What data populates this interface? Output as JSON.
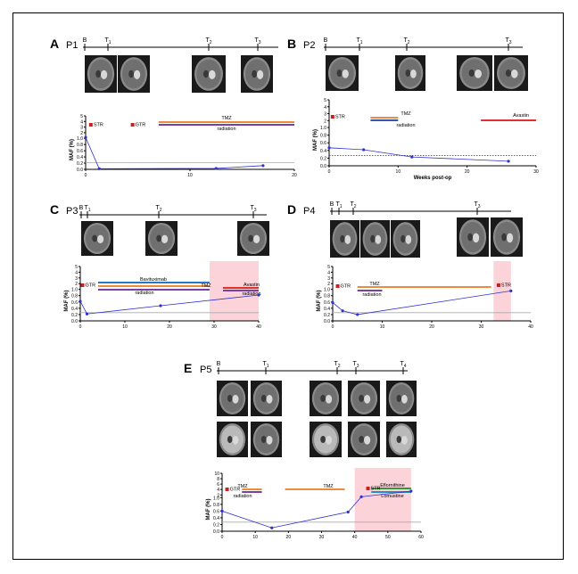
{
  "panels": [
    {
      "letter": "A",
      "patient": "P1",
      "timeline": [
        "B",
        "T1",
        "T2",
        "T3"
      ],
      "chart_data": {
        "type": "line",
        "ylabel": "MAF (%)",
        "xlabel": "",
        "yticks": [
          "0.0",
          "0.2",
          "0.4",
          "0.6",
          "0.8",
          "1.0",
          "2",
          "3",
          "4",
          "5"
        ],
        "xticks": [
          "0",
          "10",
          "20"
        ],
        "xlim": [
          0,
          20
        ],
        "series": [
          {
            "x": [
              0,
              1.3,
              12.5,
              17
            ],
            "y": [
              1.15,
              0.02,
              0.03,
              0.12
            ]
          }
        ],
        "threshold": 0.22,
        "markers": [
          {
            "label": "STR",
            "x": 0.5
          },
          {
            "label": "GTR",
            "x": 4.5
          }
        ],
        "bars": [
          {
            "label": "TMZ",
            "from": 7,
            "to": 20
          },
          {
            "label": "radiation",
            "from": 7,
            "to": 20
          }
        ]
      }
    },
    {
      "letter": "B",
      "patient": "P2",
      "timeline": [
        "B",
        "T1",
        "T2",
        "T3"
      ],
      "chart_data": {
        "type": "line",
        "ylabel": "MAF (%)",
        "xlabel": "Weeks post-op",
        "yticks": [
          "0.0",
          "0.2",
          "0.4",
          "0.6",
          "0.8",
          "1.0",
          "2",
          "3",
          "4",
          "5"
        ],
        "xticks": [
          "0",
          "10",
          "20",
          "30"
        ],
        "xlim": [
          0,
          30
        ],
        "series": [
          {
            "x": [
              0,
              5,
              12,
              26
            ],
            "y": [
              0.47,
              0.42,
              0.23,
              0.12
            ]
          }
        ],
        "threshold": 0.27,
        "markers": [
          {
            "label": "STR",
            "x": 0.5
          }
        ],
        "bars": [
          {
            "label": "TMZ",
            "from": 6,
            "to": 10
          },
          {
            "label": "radiation",
            "from": 6,
            "to": 10
          },
          {
            "label": "Avastin",
            "from": 22,
            "to": 30
          }
        ]
      }
    },
    {
      "letter": "C",
      "patient": "P3",
      "timeline": [
        "B",
        "T1",
        "T2",
        "T3"
      ],
      "chart_data": {
        "type": "line",
        "ylabel": "MAF (%)",
        "xlabel": "",
        "yticks": [
          "0.0",
          "0.2",
          "0.4",
          "0.6",
          "0.8",
          "1.0",
          "2",
          "3",
          "4",
          "5"
        ],
        "xticks": [
          "0",
          "10",
          "20",
          "30",
          "40"
        ],
        "xlim": [
          0,
          40
        ],
        "series": [
          {
            "x": [
              0,
              1.5,
              18,
              40
            ],
            "y": [
              0.62,
              0.22,
              0.48,
              0.82
            ]
          }
        ],
        "threshold": 0.26,
        "markers": [
          {
            "label": "GTR",
            "x": 0.5
          }
        ],
        "bars": [
          {
            "label": "Bavituximab",
            "from": 4,
            "to": 29
          },
          {
            "label": "TMZ",
            "from": 4,
            "to": 29
          },
          {
            "label": "radiation",
            "from": 4,
            "to": 29
          },
          {
            "label": "Avastin",
            "from": 32,
            "to": 40
          },
          {
            "label": "radiation",
            "from": 32,
            "to": 40
          }
        ],
        "shaded": [
          29,
          40
        ]
      }
    },
    {
      "letter": "D",
      "patient": "P4",
      "timeline": [
        "B",
        "T1",
        "T2",
        "T3"
      ],
      "chart_data": {
        "type": "line",
        "ylabel": "MAF (%)",
        "xlabel": "",
        "yticks": [
          "0.0",
          "0.2",
          "0.4",
          "0.6",
          "0.8",
          "1.0",
          "2",
          "3",
          "4",
          "5"
        ],
        "xticks": [
          "0",
          "10",
          "20",
          "30",
          "40"
        ],
        "xlim": [
          0,
          40
        ],
        "series": [
          {
            "x": [
              0,
              2,
              5,
              36
            ],
            "y": [
              0.58,
              0.32,
              0.2,
              0.95
            ]
          }
        ],
        "threshold": 0.26,
        "markers": [
          {
            "label": "GTR",
            "x": 1
          },
          {
            "label": "STR",
            "x": 33.5
          }
        ],
        "bars": [
          {
            "label": "TMZ",
            "from": 5,
            "to": 32
          },
          {
            "label": "radiation",
            "from": 5,
            "to": 10
          }
        ],
        "shaded": [
          32.5,
          36
        ]
      }
    },
    {
      "letter": "E",
      "patient": "P5",
      "timeline": [
        "B",
        "T1",
        "T2",
        "T3",
        "T4"
      ],
      "chart_data": {
        "type": "line",
        "ylabel": "MAF (%)",
        "xlabel": "",
        "yticks": [
          "0.0",
          "0.2",
          "0.4",
          "0.6",
          "0.8",
          "1.0",
          "2",
          "4",
          "6",
          "8",
          "10"
        ],
        "xticks": [
          "0",
          "10",
          "20",
          "30",
          "40",
          "50",
          "60"
        ],
        "xlim": [
          0,
          60
        ],
        "series": [
          {
            "x": [
              0,
              15,
              38,
              42,
              57
            ],
            "y": [
              0.6,
              0.1,
              0.57,
              1.3,
              3.4
            ]
          }
        ],
        "threshold": 0.27,
        "markers": [
          {
            "label": "GTR",
            "x": 1.5
          },
          {
            "label": "STR",
            "x": 44
          }
        ],
        "bars": [
          {
            "label": "TMZ",
            "from": 6,
            "to": 12
          },
          {
            "label": "radiation",
            "from": 6,
            "to": 12
          },
          {
            "label": "TMZ",
            "from": 19,
            "to": 37
          },
          {
            "label": "Eflornithine",
            "from": 45,
            "to": 57
          },
          {
            "label": "Lomustine",
            "from": 45,
            "to": 57
          }
        ],
        "shaded": [
          40,
          57
        ]
      }
    }
  ],
  "colors": {
    "tmz": "#f08a3c",
    "radiation_purple": "#7b3ea3",
    "radiation_red": "#d42f2f",
    "radiation_blue": "#3058b8",
    "bavituximab": "#2878c8",
    "avastin": "#e03030",
    "eflornithine": "#2e9a3e",
    "lomustine": "#2a8ac8",
    "surgery": "#d41b1b",
    "series": "#3030d0",
    "shade": "#fbd3d8"
  },
  "icons": [
    "mri-scan-image"
  ]
}
